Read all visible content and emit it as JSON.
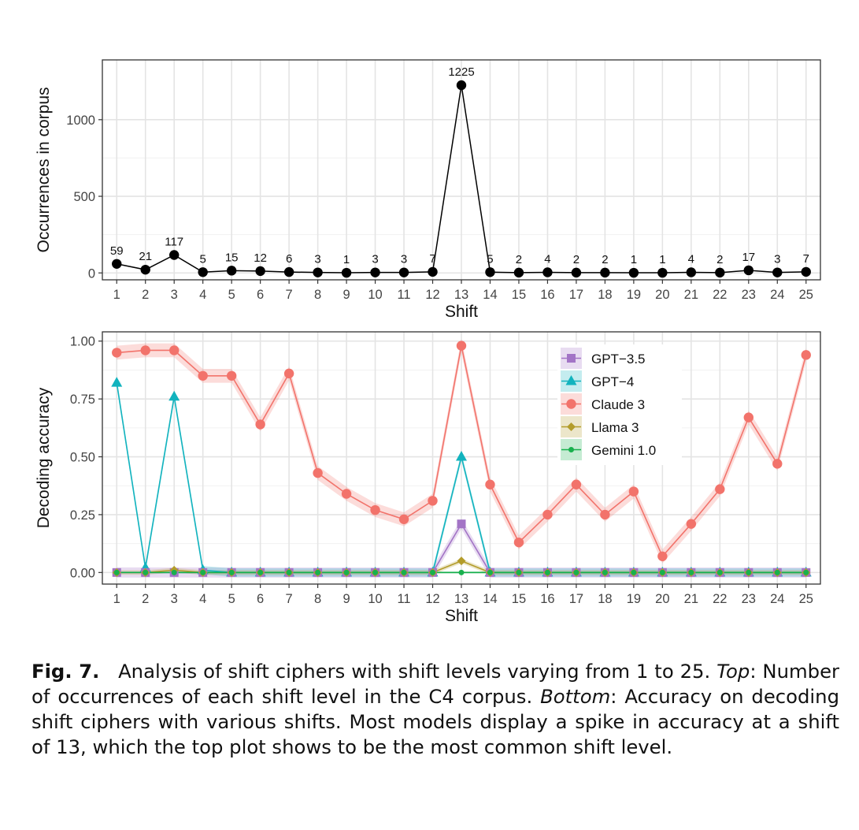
{
  "chart_data": [
    {
      "type": "line",
      "title": "",
      "xlabel": "Shift",
      "ylabel": "Occurrences in corpus",
      "x": [
        1,
        2,
        3,
        4,
        5,
        6,
        7,
        8,
        9,
        10,
        11,
        12,
        13,
        14,
        15,
        16,
        17,
        18,
        19,
        20,
        21,
        22,
        23,
        24,
        25
      ],
      "x_ticks": [
        "1",
        "2",
        "3",
        "4",
        "5",
        "6",
        "7",
        "8",
        "9",
        "10",
        "11",
        "12",
        "13",
        "14",
        "15",
        "16",
        "17",
        "18",
        "19",
        "20",
        "21",
        "22",
        "23",
        "24",
        "25"
      ],
      "y_ticks": [
        "0",
        "500",
        "1000"
      ],
      "ylim": [
        -45,
        1390
      ],
      "grid": true,
      "series": [
        {
          "values": [
            59,
            21,
            117,
            5,
            15,
            12,
            6,
            3,
            1,
            3,
            3,
            7,
            1225,
            5,
            2,
            4,
            2,
            2,
            1,
            1,
            4,
            2,
            17,
            3,
            7
          ]
        }
      ],
      "data_labels": [
        "59",
        "21",
        "117",
        "5",
        "15",
        "12",
        "6",
        "3",
        "1",
        "3",
        "3",
        "7",
        "1225",
        "5",
        "2",
        "4",
        "2",
        "2",
        "1",
        "1",
        "4",
        "2",
        "17",
        "3",
        "7"
      ]
    },
    {
      "type": "line",
      "title": "",
      "xlabel": "Shift",
      "ylabel": "Decoding accuracy",
      "x": [
        1,
        2,
        3,
        4,
        5,
        6,
        7,
        8,
        9,
        10,
        11,
        12,
        13,
        14,
        15,
        16,
        17,
        18,
        19,
        20,
        21,
        22,
        23,
        24,
        25
      ],
      "x_ticks": [
        "1",
        "2",
        "3",
        "4",
        "5",
        "6",
        "7",
        "8",
        "9",
        "10",
        "11",
        "12",
        "13",
        "14",
        "15",
        "16",
        "17",
        "18",
        "19",
        "20",
        "21",
        "22",
        "23",
        "24",
        "25"
      ],
      "y_ticks": [
        "0.00",
        "0.25",
        "0.50",
        "0.75",
        "1.00"
      ],
      "ylim": [
        -0.05,
        1.04
      ],
      "grid": true,
      "legend_position": "top-right",
      "series": [
        {
          "name": "GPT−3.5",
          "color": "#a374c6",
          "marker": "square",
          "values": [
            0,
            0,
            0,
            0,
            0,
            0,
            0,
            0,
            0,
            0,
            0,
            0,
            0.21,
            0,
            0,
            0,
            0,
            0,
            0,
            0,
            0,
            0,
            0,
            0,
            0
          ]
        },
        {
          "name": "GPT−4",
          "color": "#12b3be",
          "marker": "triangle",
          "values": [
            0.82,
            0.02,
            0.76,
            0.01,
            0,
            0,
            0,
            0,
            0,
            0,
            0,
            0,
            0.5,
            0,
            0,
            0,
            0,
            0,
            0,
            0,
            0,
            0,
            0,
            0,
            0
          ]
        },
        {
          "name": "Claude 3",
          "color": "#f2736b",
          "marker": "circle",
          "values": [
            0.95,
            0.96,
            0.96,
            0.85,
            0.85,
            0.64,
            0.86,
            0.43,
            0.34,
            0.27,
            0.23,
            0.31,
            0.98,
            0.38,
            0.13,
            0.25,
            0.38,
            0.25,
            0.35,
            0.07,
            0.21,
            0.36,
            0.67,
            0.47,
            0.94
          ]
        },
        {
          "name": "Llama 3",
          "color": "#b39c2a",
          "marker": "diamond",
          "values": [
            0,
            0,
            0.01,
            0,
            0,
            0,
            0,
            0,
            0,
            0,
            0,
            0,
            0.05,
            0,
            0,
            0,
            0,
            0,
            0,
            0,
            0,
            0,
            0,
            0,
            0
          ]
        },
        {
          "name": "Gemini 1.0",
          "color": "#18b04e",
          "marker": "dot",
          "values": [
            0,
            0,
            0,
            0,
            0,
            0,
            0,
            0,
            0,
            0,
            0,
            0,
            0,
            0,
            0,
            0,
            0,
            0,
            0,
            0,
            0,
            0,
            0,
            0,
            0
          ]
        }
      ]
    }
  ],
  "caption": {
    "fig_label": "Fig. 7.",
    "part1": "Analysis of shift ciphers with shift levels varying from 1 to 25.",
    "top_label": "Top",
    "part2": ": Number of occurrences of each shift level in the C4 corpus.",
    "bottom_label": "Bottom",
    "part3": ": Accuracy on decoding shift ciphers with various shifts. Most models display a spike in accuracy at a shift of 13, which the top plot shows to be the most common shift level."
  }
}
